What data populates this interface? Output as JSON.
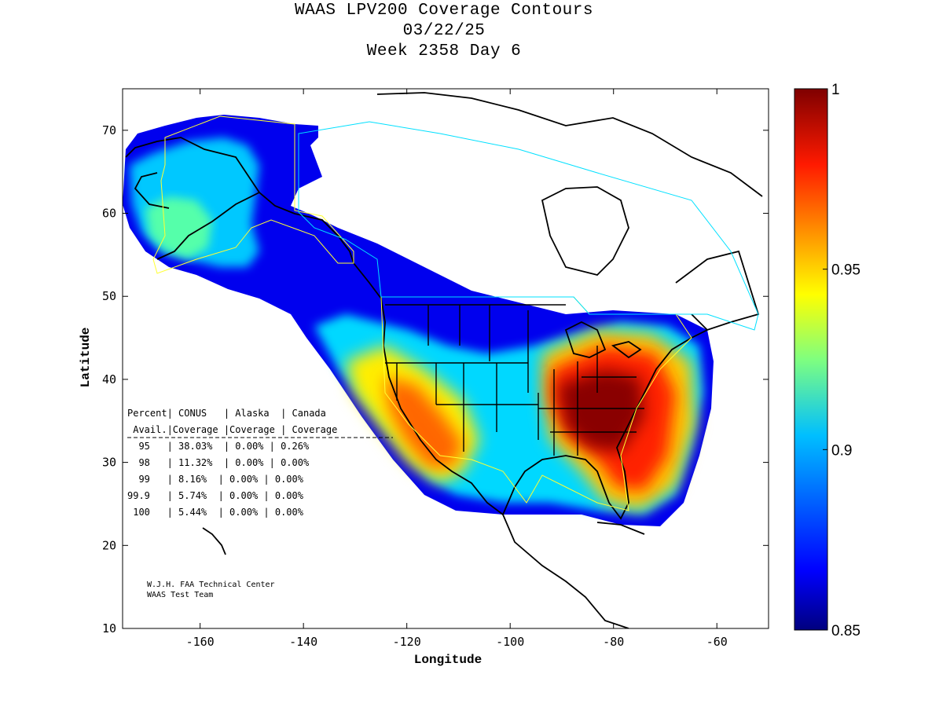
{
  "title_lines": [
    "WAAS LPV200 Coverage Contours",
    "03/22/25",
    "Week 2358 Day 6"
  ],
  "map": {
    "xlabel": "Longitude",
    "ylabel": "Latitude",
    "lon_range": [
      -175,
      -50
    ],
    "lat_range": [
      10,
      75
    ],
    "x_ticks": [
      "-160",
      "-140",
      "-120",
      "-100",
      "-80",
      "-60"
    ],
    "y_ticks": [
      "70",
      "60",
      "50",
      "40",
      "30",
      "20",
      "10"
    ]
  },
  "colorbar": {
    "labels": [
      "1",
      "0.95",
      "0.9",
      "0.85"
    ],
    "min": 0.85,
    "max": 1,
    "colors": [
      "#00007f",
      "#0000ff",
      "#007fff",
      "#00ffff",
      "#7fff7f",
      "#ffff00",
      "#ff7f00",
      "#ff0000",
      "#7f0000"
    ]
  },
  "table": {
    "header1": "Percent| CONUS   | Alaska  | Canada",
    "header2": " Avail.|Coverage |Coverage | Coverage",
    "rows": [
      "  95   | 38.03%  | 0.00% | 0.26%",
      "  98   | 11.32%  | 0.00% | 0.00%",
      "  99   | 8.16%  | 0.00% | 0.00%",
      "99.9   | 5.74%  | 0.00% | 0.00%",
      " 100   | 5.44%  | 0.00% | 0.00%"
    ]
  },
  "credit": [
    "W.J.H. FAA Technical Center",
    "WAAS Test Team"
  ]
}
